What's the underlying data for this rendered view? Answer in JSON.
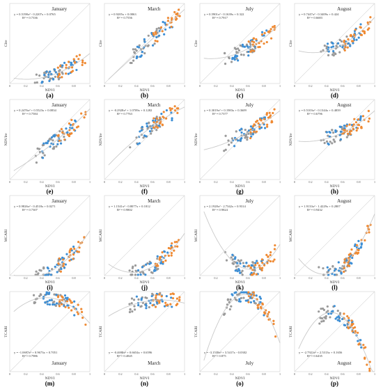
{
  "colors": {
    "gray": "#9a9a9a",
    "blue": "#3d8fd6",
    "orange": "#ef8a33",
    "frame": "#d0d0d0",
    "line": "#c9c9c9"
  },
  "chart_data": [
    {
      "type": "scatter",
      "letter": "(a)",
      "month": "January",
      "xlabel": "NDVI",
      "ylabel": "CIre",
      "eq": "y = 0.5198x² - 0.2207x + 0.0765",
      "r2": "R² = 0.7336",
      "fit": [
        0.5198,
        -0.2207,
        0.0765
      ],
      "xlim": [
        0,
        1
      ],
      "ylim": [
        0,
        1
      ],
      "xticks": [
        "0",
        "0.2",
        "0.4",
        "0.6",
        "0.8",
        "1"
      ],
      "yticks": [],
      "series": [
        {
          "name": "",
          "color": "gray",
          "n": 30,
          "seed": 11
        },
        {
          "name": "",
          "color": "blue",
          "n": 30,
          "seed": 12
        },
        {
          "name": "",
          "color": "orange",
          "n": 25,
          "seed": 13
        }
      ]
    },
    {
      "type": "scatter",
      "letter": "(b)",
      "month": "March",
      "xlabel": "NDVI",
      "ylabel": "CIre",
      "eq": "y = 0.9205x + 0.0063",
      "r2": "R² = 0.7556",
      "fit": [
        0,
        0.9205,
        0.0063
      ],
      "xlim": [
        0,
        1
      ],
      "ylim": [
        0,
        1
      ],
      "xticks": [
        "0",
        "0.2",
        "0.4",
        "0.6",
        "0.8",
        "1"
      ],
      "yticks": [],
      "series": [
        {
          "name": "",
          "color": "gray",
          "n": 30,
          "seed": 21
        },
        {
          "name": "",
          "color": "blue",
          "n": 25,
          "seed": 22
        },
        {
          "name": "",
          "color": "orange",
          "n": 25,
          "seed": 23
        }
      ]
    },
    {
      "type": "scatter",
      "letter": "(c)",
      "month": "July",
      "xlabel": "NDVI",
      "ylabel": "CIre",
      "eq": "y = 0.5901x² - 0.1639x + 0.322",
      "r2": "R² = 0.7917",
      "fit": [
        0.5901,
        -0.1639,
        0.322
      ],
      "xlim": [
        0,
        1
      ],
      "ylim": [
        0,
        1
      ],
      "xticks": [
        "0",
        "0.2",
        "0.4",
        "0.6",
        "0.8",
        "1"
      ],
      "yticks": [],
      "series": [
        {
          "name": "",
          "color": "gray",
          "n": 30,
          "seed": 31
        },
        {
          "name": "",
          "color": "blue",
          "n": 30,
          "seed": 32
        },
        {
          "name": "",
          "color": "orange",
          "n": 30,
          "seed": 33
        }
      ]
    },
    {
      "type": "scatter",
      "letter": "(d)",
      "month": "August",
      "xlabel": "NDVI",
      "ylabel": "CIre",
      "eq": "y = 0.7447x² - 0.3409x + 0.424",
      "r2": "R² = 0.6683",
      "fit": [
        0.7447,
        -0.3409,
        0.424
      ],
      "xlim": [
        0,
        1
      ],
      "ylim": [
        0,
        1
      ],
      "xticks": [
        "0",
        "0.2",
        "0.4",
        "0.6",
        "0.8",
        "1"
      ],
      "yticks": [],
      "series": [
        {
          "name": "",
          "color": "gray",
          "n": 28,
          "seed": 41
        },
        {
          "name": "",
          "color": "blue",
          "n": 30,
          "seed": 42
        },
        {
          "name": "",
          "color": "orange",
          "n": 30,
          "seed": 43
        }
      ]
    },
    {
      "type": "scatter",
      "letter": "(e)",
      "month": "January",
      "xlabel": "NDVI",
      "ylabel": "NDVIre",
      "eq": "y = 0.2476x² + 0.5523x + 0.0834",
      "r2": "R² = 0.7584",
      "fit": [
        0.2476,
        0.5523,
        0.0834
      ],
      "xlim": [
        0,
        1
      ],
      "ylim": [
        0,
        1
      ],
      "xticks": [
        "0",
        "0.2",
        "0.4",
        "0.6",
        "0.8",
        "1"
      ],
      "yticks": [],
      "series": [
        {
          "name": "",
          "color": "gray",
          "n": 30,
          "seed": 51
        },
        {
          "name": "",
          "color": "blue",
          "n": 30,
          "seed": 52
        },
        {
          "name": "",
          "color": "orange",
          "n": 25,
          "seed": 53
        }
      ]
    },
    {
      "type": "scatter",
      "letter": "(f)",
      "month": "March",
      "xlabel": "NDVI",
      "ylabel": "NDVIre",
      "eq": "y = -0.2928x² + 1.0709x + 0.1282",
      "r2": "R² = 0.7763",
      "fit": [
        -0.2928,
        1.0709,
        0.1282
      ],
      "xlim": [
        0,
        1
      ],
      "ylim": [
        0,
        1
      ],
      "xticks": [
        "0",
        "0.2",
        "0.4",
        "0.6",
        "0.8",
        "1"
      ],
      "yticks": [],
      "series": [
        {
          "name": "",
          "color": "gray",
          "n": 30,
          "seed": 61
        },
        {
          "name": "",
          "color": "blue",
          "n": 25,
          "seed": 62
        },
        {
          "name": "",
          "color": "orange",
          "n": 25,
          "seed": 63
        }
      ]
    },
    {
      "type": "scatter",
      "letter": "(g)",
      "month": "July",
      "xlabel": "NDVI",
      "ylabel": "NDVIre",
      "eq": "y = 0.3019x² + 0.1983x + 0.3609",
      "r2": "R² = 0.7377",
      "fit": [
        0.3019,
        0.1983,
        0.3609
      ],
      "xlim": [
        0,
        1
      ],
      "ylim": [
        0,
        1
      ],
      "xticks": [
        "0",
        "0.2",
        "0.4",
        "0.6",
        "0.8",
        "1"
      ],
      "yticks": [],
      "series": [
        {
          "name": "",
          "color": "gray",
          "n": 30,
          "seed": 71
        },
        {
          "name": "",
          "color": "blue",
          "n": 30,
          "seed": 72
        },
        {
          "name": "",
          "color": "orange",
          "n": 30,
          "seed": 73
        }
      ]
    },
    {
      "type": "scatter",
      "letter": "(h)",
      "month": "August",
      "xlabel": "NDVI",
      "ylabel": "NDVIre",
      "eq": "y = 0.5103x² - 0.1344x + 0.4839",
      "r2": "R² = 0.6796",
      "fit": [
        0.5103,
        -0.1344,
        0.4839
      ],
      "xlim": [
        0,
        1
      ],
      "ylim": [
        0,
        1
      ],
      "xticks": [
        "0",
        "0.2",
        "0.4",
        "0.6",
        "0.8",
        "1"
      ],
      "yticks": [],
      "series": [
        {
          "name": "",
          "color": "gray",
          "n": 28,
          "seed": 81
        },
        {
          "name": "",
          "color": "blue",
          "n": 30,
          "seed": 82
        },
        {
          "name": "",
          "color": "orange",
          "n": 30,
          "seed": 83
        }
      ]
    },
    {
      "type": "scatter",
      "letter": "(i)",
      "month": "January",
      "xlabel": "NDVI",
      "ylabel": "MCARI",
      "eq": "y = 0.9826x² - 0.4518x + 0.0271",
      "r2": "R² = 0.7307",
      "fit": [
        0.9826,
        -0.4518,
        0.0271
      ],
      "xlim": [
        0,
        1
      ],
      "ylim": [
        0,
        1
      ],
      "xticks": [
        "0",
        "0.2",
        "0.4",
        "0.6",
        "0.8",
        "1"
      ],
      "yticks": [],
      "series": [
        {
          "name": "",
          "color": "gray",
          "n": 30,
          "seed": 91
        },
        {
          "name": "",
          "color": "blue",
          "n": 30,
          "seed": 92
        },
        {
          "name": "",
          "color": "orange",
          "n": 25,
          "seed": 93
        }
      ]
    },
    {
      "type": "scatter",
      "letter": "(j)",
      "month": "March",
      "xlabel": "NDVI",
      "ylabel": "MCARI",
      "eq": "y = 1.1541x² - 0.8077x + 0.1812",
      "r2": "R² = 0.9802",
      "fit": [
        1.1541,
        -0.8077,
        0.1812
      ],
      "xlim": [
        0,
        1
      ],
      "ylim": [
        0,
        1
      ],
      "xticks": [
        "0",
        "0.2",
        "0.4",
        "0.6",
        "0.8",
        "1"
      ],
      "yticks": [],
      "series": [
        {
          "name": "",
          "color": "gray",
          "n": 30,
          "seed": 101
        },
        {
          "name": "",
          "color": "blue",
          "n": 25,
          "seed": 102
        },
        {
          "name": "",
          "color": "orange",
          "n": 25,
          "seed": 103
        }
      ]
    },
    {
      "type": "scatter",
      "letter": "(k)",
      "month": "July",
      "xlabel": "NDVI",
      "ylabel": "MCARI",
      "eq": "y = 2.1928x² - 2.7342x + 0.9314",
      "r2": "R² = 0.9824",
      "fit": [
        2.1928,
        -2.7342,
        0.9314
      ],
      "xlim": [
        0,
        1
      ],
      "ylim": [
        0,
        1
      ],
      "xticks": [
        "0",
        "0.2",
        "0.4",
        "0.6",
        "0.8",
        "1"
      ],
      "yticks": [],
      "series": [
        {
          "name": "",
          "color": "gray",
          "n": 30,
          "seed": 111
        },
        {
          "name": "",
          "color": "blue",
          "n": 30,
          "seed": 112
        },
        {
          "name": "",
          "color": "orange",
          "n": 30,
          "seed": 113
        }
      ]
    },
    {
      "type": "scatter",
      "letter": "(l)",
      "month": "August",
      "xlabel": "NDVI",
      "ylabel": "MCARI",
      "eq": "y = 1.9133x² - 1.4229x + 0.2807",
      "r2": "R² = 0.9432",
      "fit": [
        1.9133,
        -1.4229,
        0.2807
      ],
      "xlim": [
        0,
        1
      ],
      "ylim": [
        0,
        1
      ],
      "xticks": [
        "0",
        "0.2",
        "0.4",
        "0.6",
        "0.8",
        "1"
      ],
      "yticks": [],
      "series": [
        {
          "name": "",
          "color": "gray",
          "n": 28,
          "seed": 121
        },
        {
          "name": "",
          "color": "blue",
          "n": 30,
          "seed": 122
        },
        {
          "name": "",
          "color": "orange",
          "n": 30,
          "seed": 123
        }
      ]
    },
    {
      "type": "scatter",
      "letter": "(m)",
      "month": "January",
      "xlabel": "NDVI",
      "ylabel": "TCARI",
      "eq": "y = -1.0697x² + 0.9673x + 0.7051",
      "r2": "R² = 0.7986",
      "fit": [
        -1.0697,
        0.9673,
        0.7051
      ],
      "xlim": [
        0,
        1
      ],
      "ylim": [
        0,
        1
      ],
      "xticks": [
        "0",
        "0.2",
        "0.4",
        "0.6",
        "0.8",
        "1"
      ],
      "yticks": [],
      "series": [
        {
          "name": "",
          "color": "gray",
          "n": 30,
          "seed": 131
        },
        {
          "name": "",
          "color": "blue",
          "n": 30,
          "seed": 132
        },
        {
          "name": "",
          "color": "orange",
          "n": 25,
          "seed": 133
        }
      ]
    },
    {
      "type": "scatter",
      "letter": "(n)",
      "month": "March",
      "xlabel": "NDVI",
      "ylabel": "TCARI",
      "eq": "y = -0.4698x² + 0.6654x + 0.6596",
      "r2": "R² = 0.4845",
      "fit": [
        -0.4698,
        0.6654,
        0.6596
      ],
      "xlim": [
        0,
        1
      ],
      "ylim": [
        0,
        1
      ],
      "xticks": [
        "0",
        "0.2",
        "0.4",
        "0.6",
        "0.8",
        "1"
      ],
      "yticks": [],
      "series": [
        {
          "name": "",
          "color": "gray",
          "n": 30,
          "seed": 141
        },
        {
          "name": "",
          "color": "blue",
          "n": 25,
          "seed": 142
        },
        {
          "name": "",
          "color": "orange",
          "n": 25,
          "seed": 143
        }
      ]
    },
    {
      "type": "scatter",
      "letter": "(o)",
      "month": "July",
      "xlabel": "NDVI",
      "ylabel": "TCARI",
      "eq": "y = -3.1539x² + 3.5417x - 0.0302",
      "r2": "R² = 0.875",
      "fit": [
        -3.1539,
        3.5417,
        -0.0302
      ],
      "xlim": [
        0,
        1
      ],
      "ylim": [
        0,
        1
      ],
      "xticks": [
        "0",
        "0.2",
        "0.4",
        "0.6",
        "0.8",
        "1"
      ],
      "yticks": [],
      "series": [
        {
          "name": "",
          "color": "gray",
          "n": 30,
          "seed": 151
        },
        {
          "name": "",
          "color": "blue",
          "n": 30,
          "seed": 152
        },
        {
          "name": "",
          "color": "orange",
          "n": 30,
          "seed": 153
        }
      ]
    },
    {
      "type": "scatter",
      "letter": "(p)",
      "month": "August",
      "xlabel": "NDVI",
      "ylabel": "TCARI",
      "eq": "y = -2.7921x² + 2.5313x + 0.1656",
      "r2": "R² = 0.6435",
      "fit": [
        -2.7921,
        2.5313,
        0.1656
      ],
      "xlim": [
        0,
        1
      ],
      "ylim": [
        0,
        1
      ],
      "xticks": [
        "0",
        "0.2",
        "0.4",
        "0.6",
        "0.8",
        "1"
      ],
      "yticks": [],
      "series": [
        {
          "name": "",
          "color": "gray",
          "n": 28,
          "seed": 161
        },
        {
          "name": "",
          "color": "blue",
          "n": 30,
          "seed": 162
        },
        {
          "name": "",
          "color": "orange",
          "n": 30,
          "seed": 163
        }
      ]
    }
  ]
}
